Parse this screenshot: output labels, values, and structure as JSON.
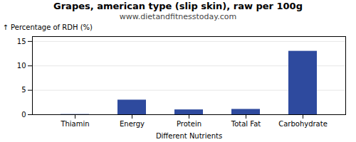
{
  "chart_data": {
    "type": "bar",
    "title": "Grapes, american type (slip skin), raw per 100g",
    "subtitle": "www.dietandfitnesstoday.com",
    "xlabel": "Different Nutrients",
    "ylabel": "Percentage of RDH (%)",
    "categories": [
      "Thiamin",
      "Energy",
      "Protein",
      "Total Fat",
      "Carbohydrate"
    ],
    "values": [
      0.05,
      3.0,
      1.0,
      1.1,
      13.0
    ],
    "color": "#2e4a9e",
    "ylim": [
      0,
      16
    ],
    "yticks": [
      0,
      5,
      10,
      15
    ],
    "grid": true
  }
}
